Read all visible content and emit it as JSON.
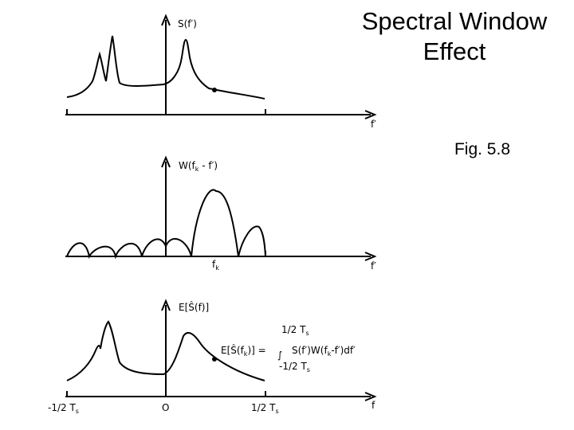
{
  "slide": {
    "title_line1": "Spectral Window",
    "title_line2": "Effect",
    "figure_label": "Fig. 5.8"
  },
  "panel_top": {
    "ylabel": "S(f′)",
    "xlabel": "f′"
  },
  "panel_middle": {
    "ylabel_main": "W(f",
    "ylabel_sub": "k",
    "ylabel_tail": " - f′)",
    "tick_main": "f",
    "tick_sub": "k",
    "xlabel": "f′"
  },
  "panel_bottom": {
    "ylabel": "E[Ŝ(f)]",
    "xlabel": "f",
    "tick_left": "-1/2 T",
    "tick_left_sub": "s",
    "tick_zero": "O",
    "tick_right": "1/2 T",
    "tick_right_sub": "s",
    "eq_lhs": "E[Ŝ(f",
    "eq_lhs_sub": "k",
    "eq_lhs_tail": ")] =",
    "eq_integrand": "S(f′)W(f",
    "eq_integrand_sub": "k",
    "eq_integrand_tail": "-f′)df′",
    "eq_upper": "1/2 T",
    "eq_upper_sub": "s",
    "eq_lower": "-1/2 T",
    "eq_lower_sub": "s",
    "eq_integral_sign": "∫"
  }
}
